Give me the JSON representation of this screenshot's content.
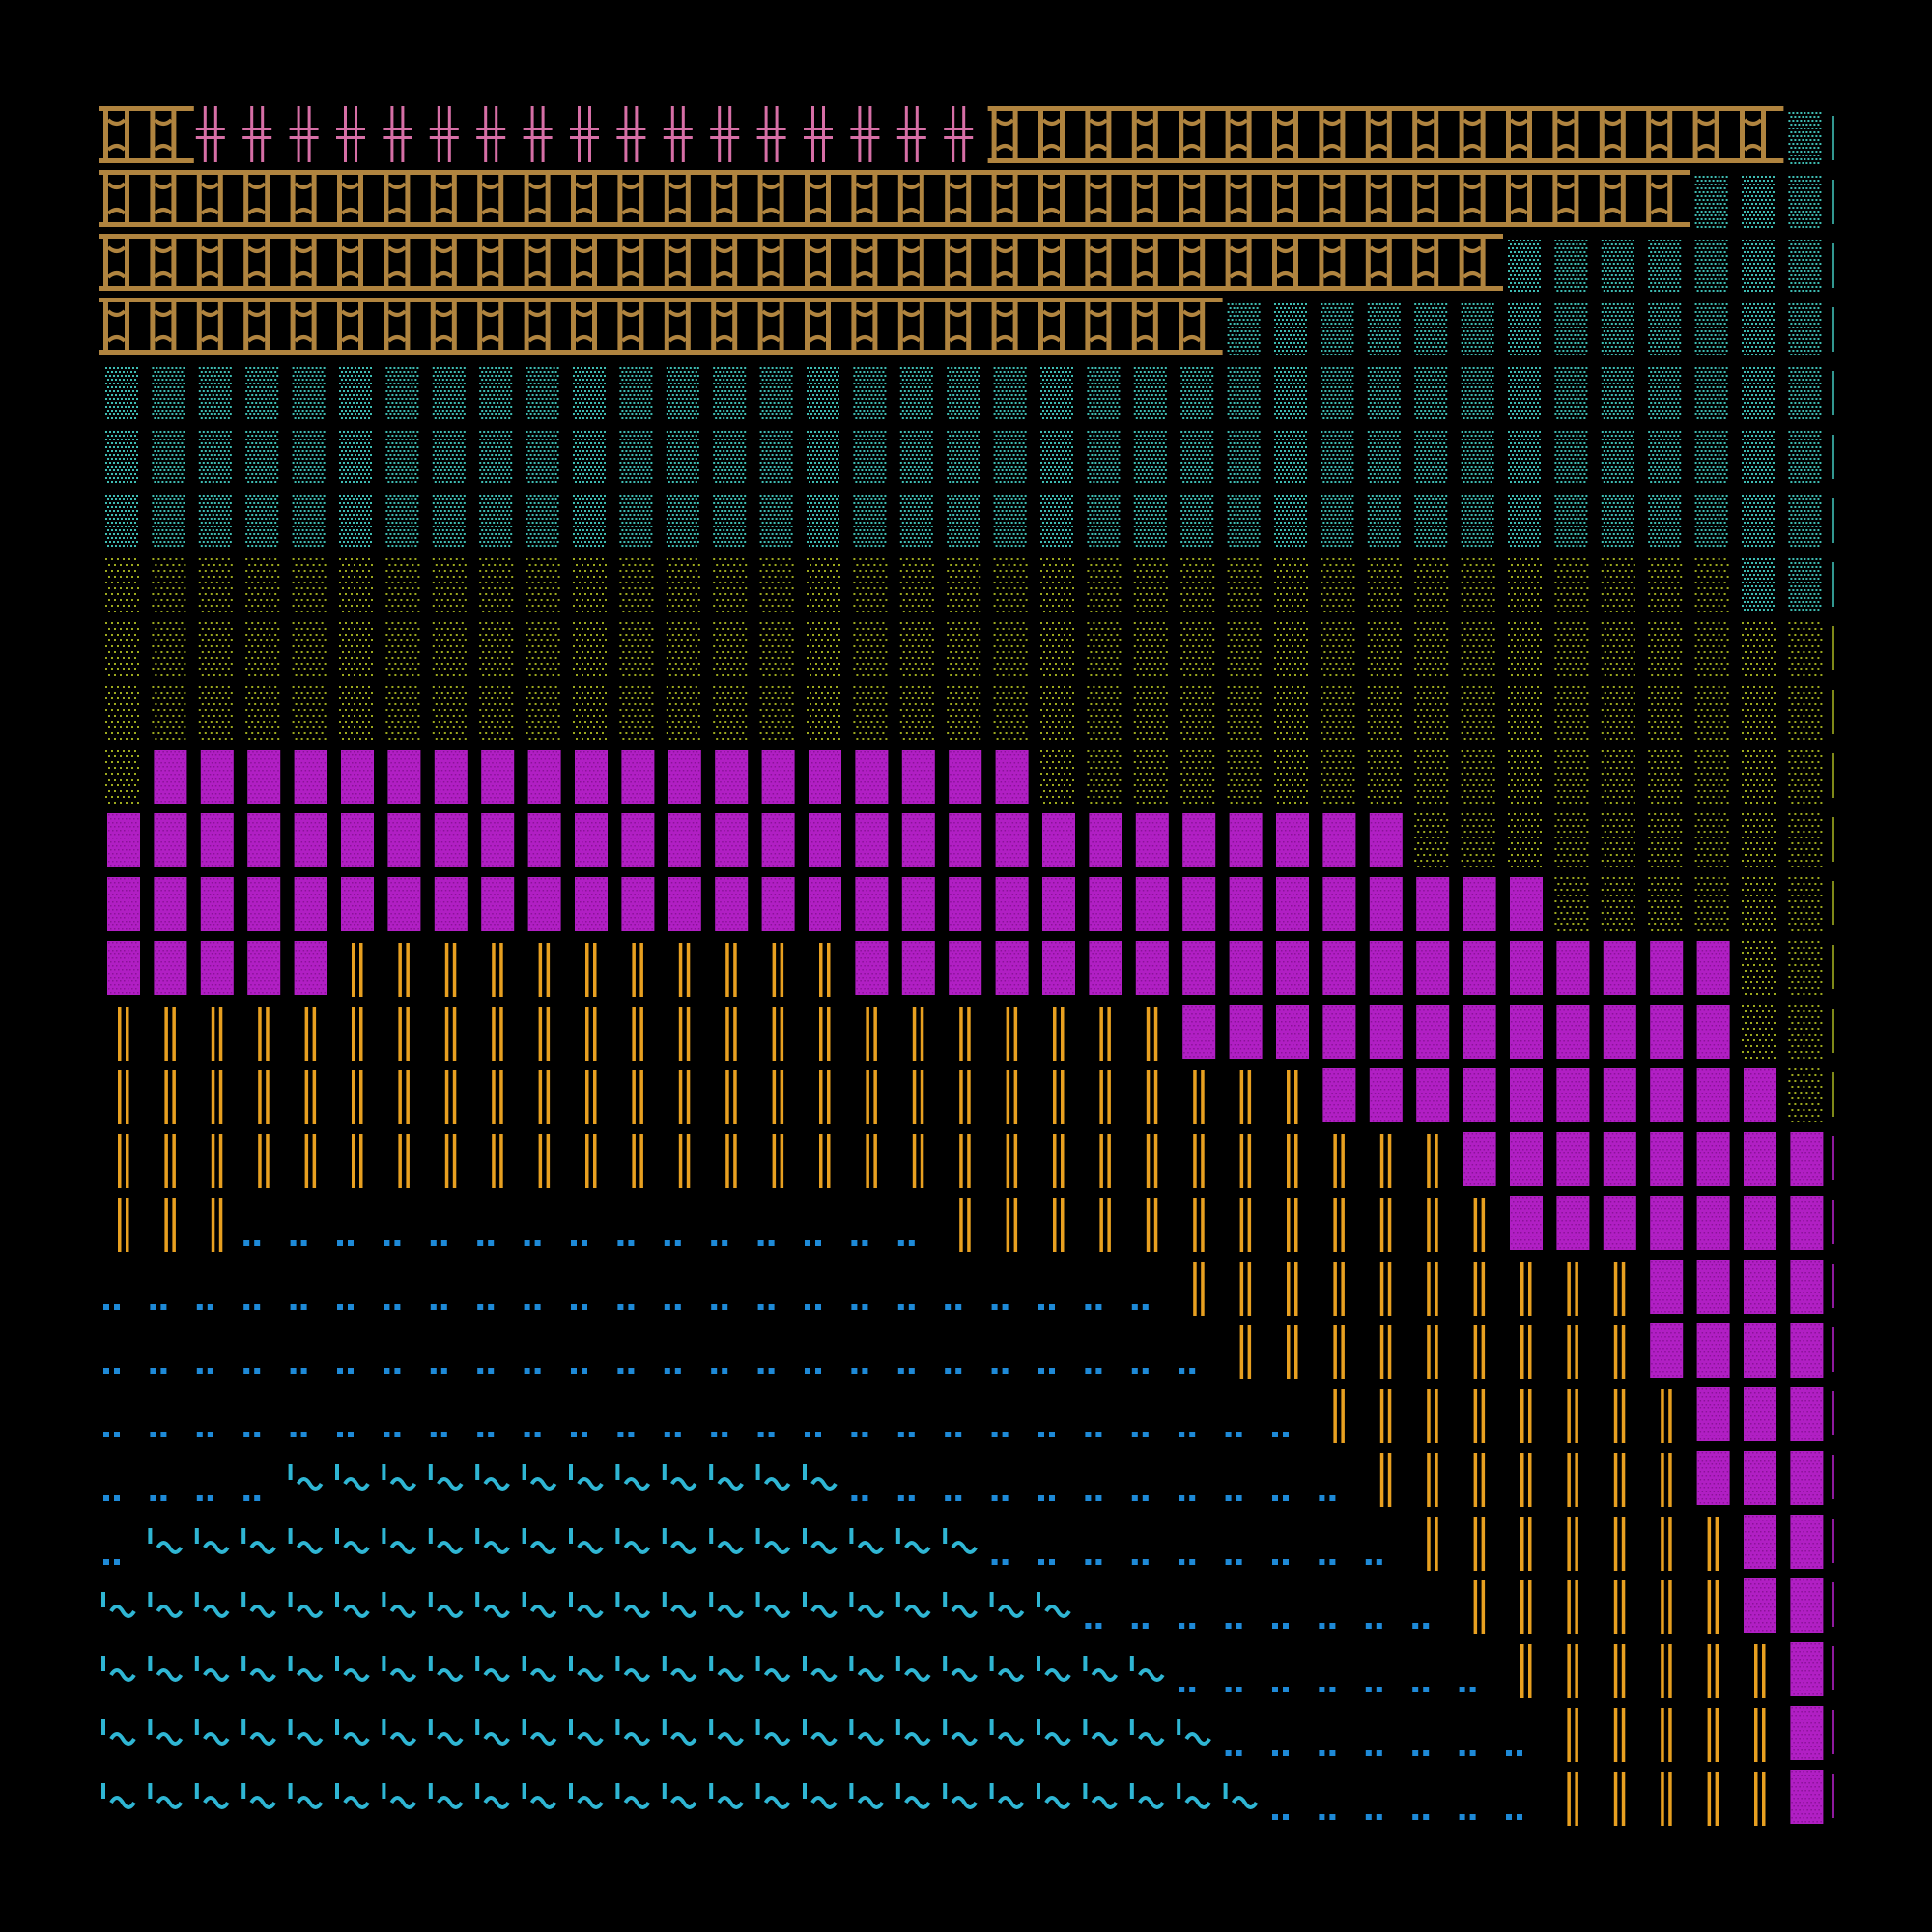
{
  "palette": {
    "background": "#000000",
    "gold": "#b0843f",
    "pink": "#d66fa6",
    "teal": "#3fbdb4",
    "olive": "#9eaa1e",
    "magenta": "#b11fc4",
    "orange": "#e8a020",
    "blue": "#1e8ad8",
    "cyan": "#2fb6d4"
  },
  "glyph_kinds": {
    "gold": "ornate-bracket-glyph",
    "pink": "double-cross-glyph",
    "teal": "dotted-block-glyph",
    "olive": "sparse-dot-glyph",
    "magenta": "dense-block-glyph",
    "orange": "double-bar-glyph",
    "blue": "double-dot-glyph",
    "cyan": "tilde-wave-glyph"
  },
  "grid": {
    "columns": 37,
    "rows": 27
  },
  "rows": [
    [
      [
        "gold",
        2
      ],
      [
        "pink",
        17
      ],
      [
        "gold",
        17
      ],
      [
        "teal",
        1
      ]
    ],
    [
      [
        "gold",
        34
      ],
      [
        "teal",
        3
      ]
    ],
    [
      [
        "gold",
        30
      ],
      [
        "teal",
        7
      ]
    ],
    [
      [
        "gold",
        24
      ],
      [
        "teal",
        13
      ]
    ],
    [
      [
        "teal",
        37
      ]
    ],
    [
      [
        "teal",
        37
      ]
    ],
    [
      [
        "teal",
        37
      ]
    ],
    [
      [
        "olive",
        35
      ],
      [
        "teal",
        2
      ]
    ],
    [
      [
        "olive",
        37
      ]
    ],
    [
      [
        "olive",
        37
      ]
    ],
    [
      [
        "olive",
        1
      ],
      [
        "magenta",
        19
      ],
      [
        "olive",
        17
      ]
    ],
    [
      [
        "magenta",
        28
      ],
      [
        "olive",
        9
      ]
    ],
    [
      [
        "magenta",
        31
      ],
      [
        "olive",
        6
      ]
    ],
    [
      [
        "magenta",
        5
      ],
      [
        "orange",
        11
      ],
      [
        "magenta",
        19
      ],
      [
        "olive",
        2
      ]
    ],
    [
      [
        "orange",
        23
      ],
      [
        "magenta",
        12
      ],
      [
        "olive",
        2
      ]
    ],
    [
      [
        "orange",
        26
      ],
      [
        "magenta",
        10
      ],
      [
        "olive",
        1
      ]
    ],
    [
      [
        "orange",
        29
      ],
      [
        "magenta",
        8
      ]
    ],
    [
      [
        "orange",
        3
      ],
      [
        "blue",
        15
      ],
      [
        "orange",
        12
      ],
      [
        "magenta",
        7
      ]
    ],
    [
      [
        "blue",
        23
      ],
      [
        "orange",
        10
      ],
      [
        "magenta",
        4
      ]
    ],
    [
      [
        "blue",
        24
      ],
      [
        "orange",
        9
      ],
      [
        "magenta",
        4
      ]
    ],
    [
      [
        "blue",
        26
      ],
      [
        "orange",
        8
      ],
      [
        "magenta",
        3
      ]
    ],
    [
      [
        "blue",
        4
      ],
      [
        "cyan",
        12
      ],
      [
        "blue",
        11
      ],
      [
        "orange",
        7
      ],
      [
        "magenta",
        3
      ]
    ],
    [
      [
        "blue",
        1
      ],
      [
        "cyan",
        18
      ],
      [
        "blue",
        9
      ],
      [
        "orange",
        7
      ],
      [
        "magenta",
        2
      ]
    ],
    [
      [
        "cyan",
        21
      ],
      [
        "blue",
        8
      ],
      [
        "orange",
        6
      ],
      [
        "magenta",
        2
      ]
    ],
    [
      [
        "cyan",
        23
      ],
      [
        "blue",
        7
      ],
      [
        "orange",
        6
      ],
      [
        "magenta",
        1
      ]
    ],
    [
      [
        "cyan",
        24
      ],
      [
        "blue",
        7
      ],
      [
        "orange",
        5
      ],
      [
        "magenta",
        1
      ]
    ],
    [
      [
        "cyan",
        25
      ],
      [
        "blue",
        6
      ],
      [
        "orange",
        5
      ],
      [
        "magenta",
        1
      ]
    ]
  ]
}
